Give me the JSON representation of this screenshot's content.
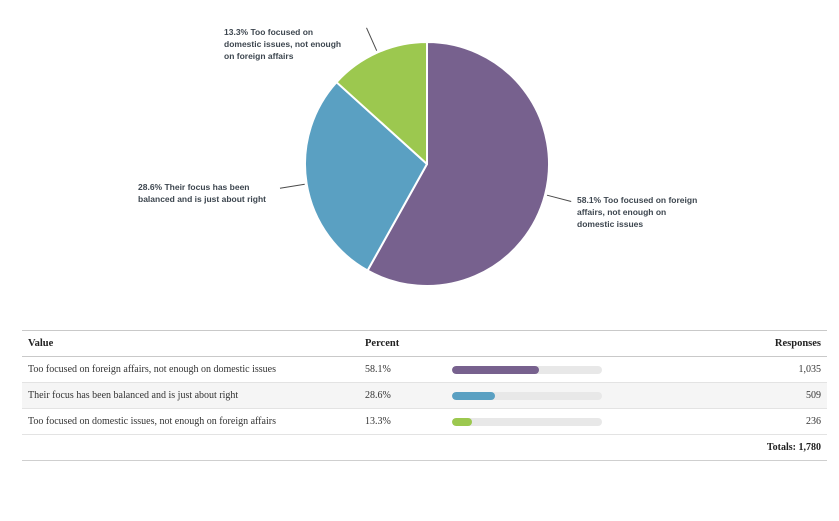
{
  "chart_data": {
    "type": "pie",
    "title": "",
    "categories": [
      "Too focused on foreign affairs, not enough on domestic issues",
      "Their focus has been balanced and is just about right",
      "Too focused on domestic issues, not enough on foreign affairs"
    ],
    "values": [
      58.1,
      28.6,
      13.3
    ],
    "start_angle_deg": 0,
    "direction": "clockwise",
    "legend_position": "callout-labels",
    "slices": [
      {
        "label": "Too focused on foreign affairs, not enough on domestic issues",
        "percent_label": "58.1%",
        "percent_value": 58.1,
        "responses": "1,035",
        "color": "#77618E"
      },
      {
        "label": "Their focus has been balanced and is just about right",
        "percent_label": "28.6%",
        "percent_value": 28.6,
        "responses": "509",
        "color": "#5AA0C2"
      },
      {
        "label": "Too focused on domestic issues, not enough on foreign affairs",
        "percent_label": "13.3%",
        "percent_value": 13.3,
        "responses": "236",
        "color": "#9CC84F"
      }
    ]
  },
  "table": {
    "columns": [
      "Value",
      "Percent",
      "Responses"
    ],
    "totals_label": "Totals: 1,780"
  },
  "colors": {
    "slice_stroke": "#ffffff",
    "leader_line": "#4a4a4a",
    "bar_track": "#e8e8e8",
    "zebra_row": "#f5f5f5",
    "label_text": "#3d464f"
  }
}
